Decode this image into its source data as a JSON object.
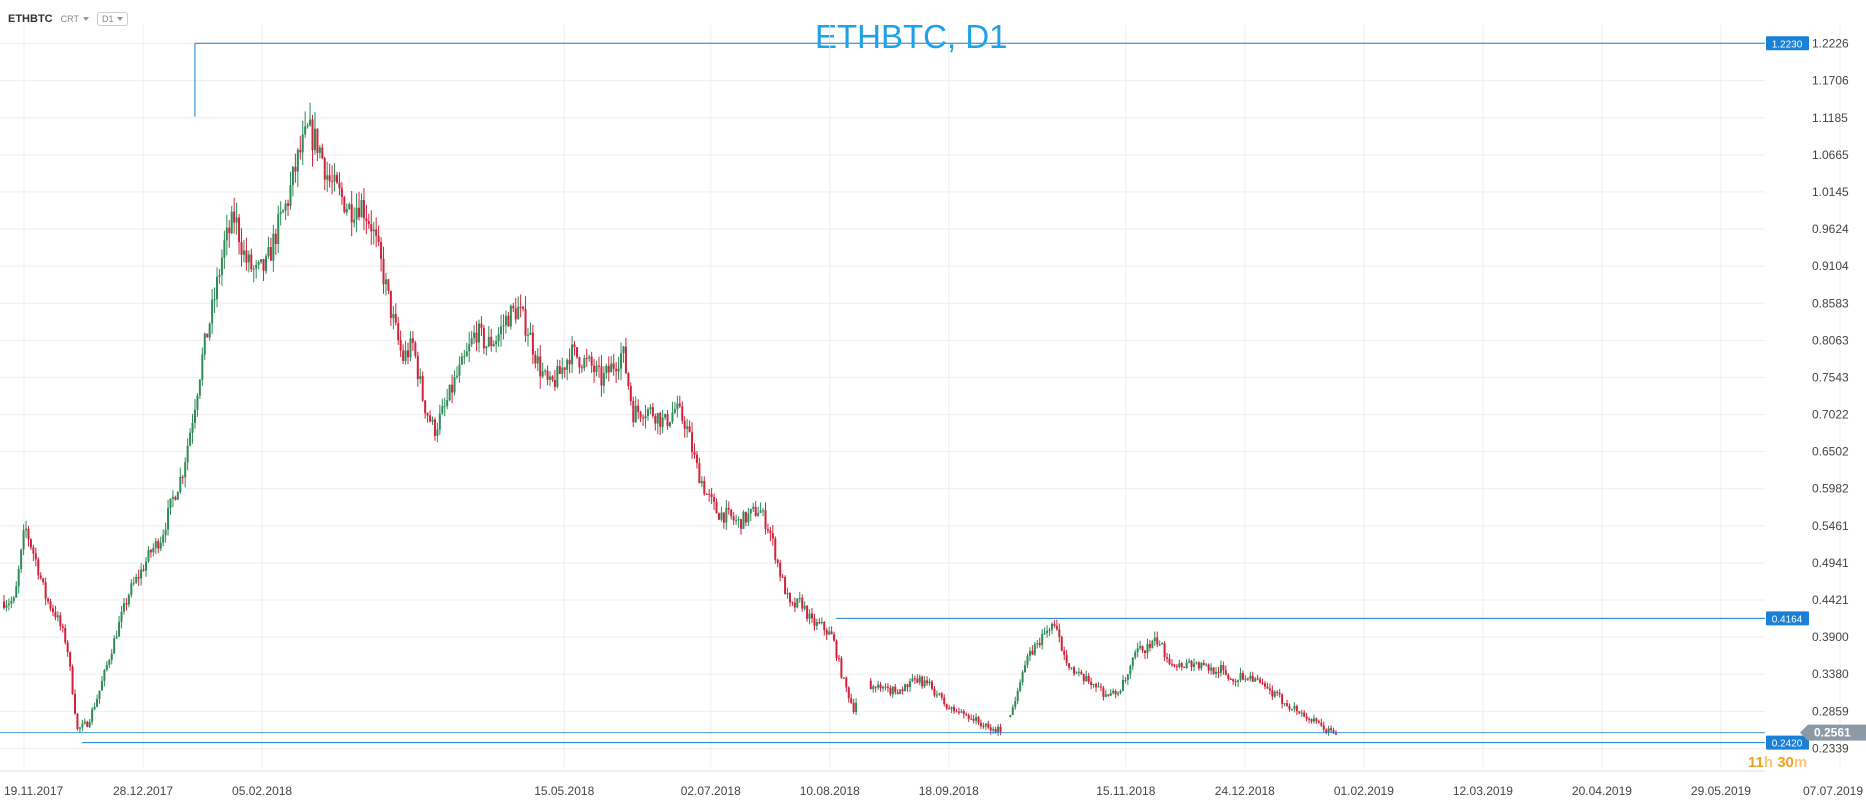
{
  "toolbar": {
    "symbol": "ETHBTC",
    "type_label": "CRT",
    "timeframe_label": "D1"
  },
  "countdown": {
    "hours": "11",
    "hours_unit": "h",
    "minutes": "30",
    "minutes_unit": "m"
  },
  "colors": {
    "up": "#2e8b57",
    "down": "#d0223a",
    "line": "#1a7fd6",
    "label_bg": "#1a7fd6",
    "current_bg": "#8d9aa6",
    "grid": "#eeeeee",
    "title": "#1ea2e6"
  },
  "chart_data": {
    "type": "candlestick",
    "title": "ETHBTC, D1",
    "x_start": "2017-11-19",
    "x_end": "2019-07-07",
    "ylim": [
      0.2079,
      1.2486
    ],
    "yticks": [
      0.2339,
      0.2859,
      0.338,
      0.39,
      0.4421,
      0.4941,
      0.5461,
      0.5982,
      0.6502,
      0.7022,
      0.7543,
      0.8063,
      0.8583,
      0.9104,
      0.9624,
      1.0145,
      1.0665,
      1.1185,
      1.1706,
      1.2226
    ],
    "ytick_labels": [
      "0.2339",
      "0.2859",
      "0.3380",
      "0.3900",
      "0.4421",
      "0.4941",
      "0.5461",
      "0.5982",
      "0.6502",
      "0.7022",
      "0.7543",
      "0.8063",
      "0.8583",
      "0.9104",
      "0.9624",
      "1.0145",
      "1.0665",
      "1.1185",
      "1.1706",
      "1.2226"
    ],
    "xticks": [
      "2017-11-19",
      "2017-12-28",
      "2018-02-05",
      "2018-05-15",
      "2018-07-02",
      "2018-08-10",
      "2018-09-18",
      "2018-11-15",
      "2018-12-24",
      "2019-02-01",
      "2019-03-12",
      "2019-04-20",
      "2019-05-29",
      "2019-07-07"
    ],
    "xtick_labels": [
      "19.11.2017",
      "28.12.2017",
      "05.02.2018",
      "15.05.2018",
      "02.07.2018",
      "10.08.2018",
      "18.09.2018",
      "15.11.2018",
      "24.12.2018",
      "01.02.2019",
      "12.03.2019",
      "20.04.2019",
      "29.05.2019",
      "07.07.2019"
    ],
    "grid": true,
    "close_path": [
      0.44,
      0.44,
      0.545,
      0.5,
      0.445,
      0.42,
      0.38,
      0.26,
      0.27,
      0.31,
      0.36,
      0.41,
      0.455,
      0.48,
      0.51,
      0.53,
      0.58,
      0.62,
      0.7,
      0.79,
      0.86,
      0.94,
      0.98,
      0.92,
      0.9,
      0.91,
      0.96,
      1.0,
      1.06,
      1.1,
      1.08,
      1.03,
      1.01,
      0.99,
      1.0,
      0.97,
      0.91,
      0.84,
      0.78,
      0.8,
      0.72,
      0.68,
      0.71,
      0.75,
      0.78,
      0.82,
      0.8,
      0.81,
      0.84,
      0.85,
      0.82,
      0.77,
      0.74,
      0.76,
      0.79,
      0.78,
      0.77,
      0.75,
      0.77,
      0.79,
      0.705,
      0.71,
      0.705,
      0.69,
      0.71,
      0.69,
      0.63,
      0.59,
      0.565,
      0.56,
      0.55,
      0.56,
      0.57,
      0.54,
      0.48,
      0.43,
      0.44,
      0.41,
      0.405,
      0.39,
      0.33,
      0.29,
      0.33,
      0.32,
      0.315,
      0.315,
      0.32,
      0.33,
      0.325,
      0.31,
      0.29,
      0.285,
      0.28,
      0.27,
      0.26,
      0.26,
      0.28,
      0.34,
      0.37,
      0.39,
      0.41,
      0.37,
      0.34,
      0.33,
      0.325,
      0.31,
      0.31,
      0.33,
      0.37,
      0.375,
      0.385,
      0.36,
      0.35,
      0.355,
      0.35,
      0.345,
      0.345,
      0.33,
      0.335,
      0.335,
      0.32,
      0.31,
      0.3,
      0.29,
      0.28,
      0.27,
      0.26,
      0.256
    ],
    "gaps": [
      [
        0.64,
        0.65
      ],
      [
        0.75,
        0.755
      ]
    ],
    "levels": [
      {
        "value": 1.223,
        "label": "1.2230",
        "from": "2018-01-14"
      },
      {
        "value": 0.4164,
        "label": "0.4164",
        "from": "2018-08-12"
      },
      {
        "value": 0.242,
        "label": "0.2420",
        "from": "2017-12-08"
      }
    ],
    "current_price": {
      "value": 0.2561,
      "label": "0.2561"
    }
  }
}
